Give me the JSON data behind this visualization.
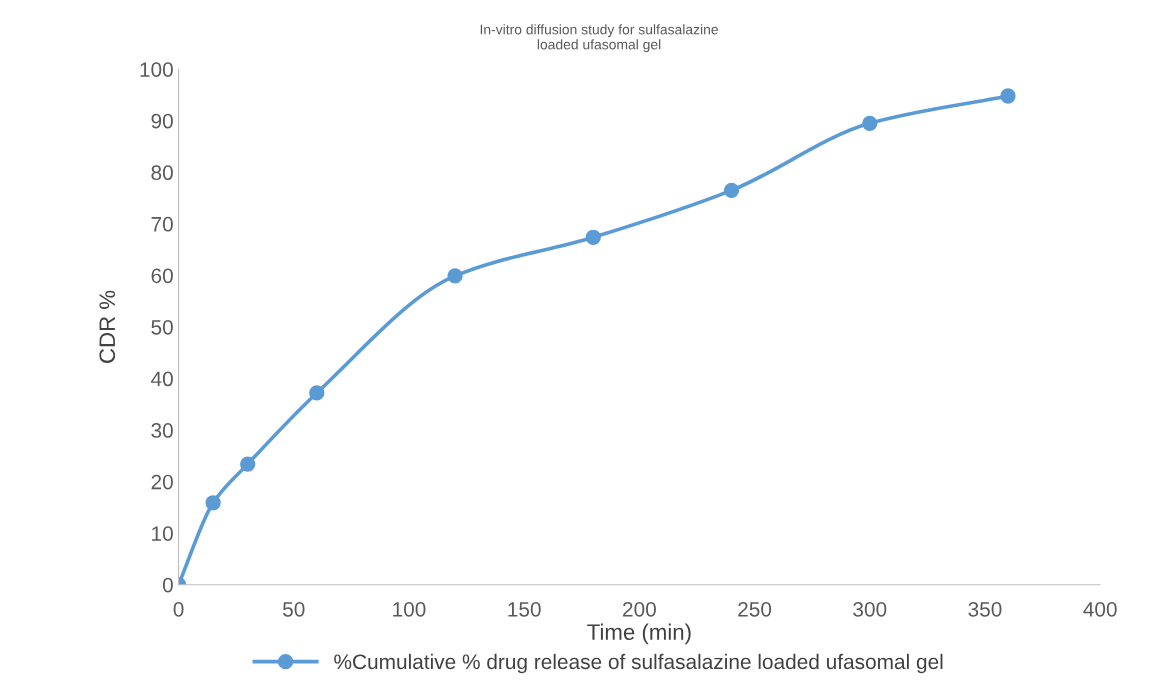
{
  "chart_data": {
    "type": "line",
    "title": "In-vitro diffusion study for sulfasalazine\nloaded ufasomal gel",
    "xlabel": "Time (min)",
    "ylabel": "CDR %",
    "x": [
      0,
      15,
      30,
      60,
      120,
      180,
      240,
      300,
      360
    ],
    "series": [
      {
        "name": "%Cumulative % drug release of sulfasalazine loaded ufasomal gel",
        "color": "#5b9bd5",
        "values": [
          0,
          15.9,
          23.4,
          37.2,
          59.9,
          67.4,
          76.5,
          89.5,
          94.8
        ]
      }
    ],
    "xlim": [
      0,
      400
    ],
    "xticks": [
      0,
      50,
      100,
      150,
      200,
      250,
      300,
      350,
      400
    ],
    "ylim": [
      0,
      100
    ],
    "yticks": [
      0,
      10,
      20,
      30,
      40,
      50,
      60,
      70,
      80,
      90,
      100
    ],
    "grid": false,
    "legend": "bottom",
    "marker": "circle",
    "line_style": "solid"
  }
}
